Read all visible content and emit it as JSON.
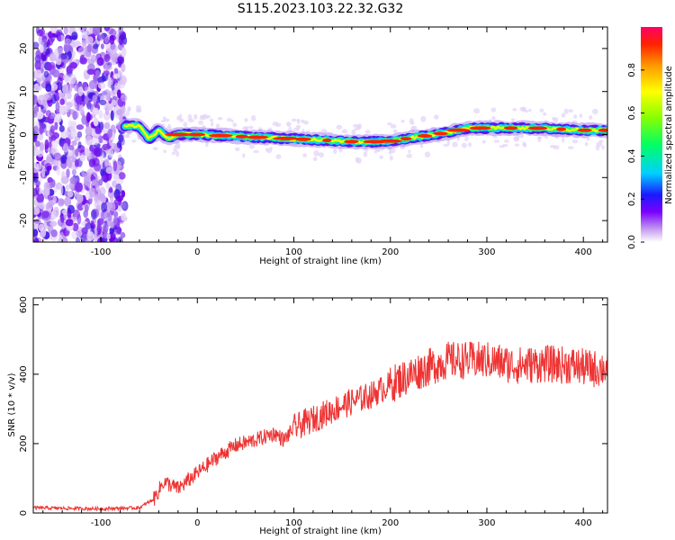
{
  "title": "S115.2023.103.22.32.G32",
  "chart_data": [
    {
      "type": "heatmap",
      "xlabel": "Height of straight line (km)",
      "ylabel": "Frequency (Hz)",
      "xlim": [
        -170,
        425
      ],
      "ylim": [
        -25,
        25
      ],
      "xticks": [
        -100,
        0,
        100,
        200,
        300,
        400
      ],
      "yticks": [
        -20,
        -10,
        0,
        10,
        20
      ],
      "colorbar": {
        "label": "Normalized spectral amplitude",
        "range": [
          0,
          1
        ],
        "ticks": [
          0.0,
          0.2,
          0.4,
          0.6,
          0.8
        ]
      },
      "ridge": {
        "x": [
          -60,
          -50,
          -40,
          -30,
          -20,
          0,
          50,
          100,
          150,
          170,
          200,
          230,
          260,
          280,
          300,
          350,
          400,
          425
        ],
        "y": [
          2,
          -1,
          1,
          -1,
          0,
          0,
          -0.5,
          -1,
          -1.5,
          -1.8,
          -1.5,
          -0.5,
          0.5,
          1.5,
          1.5,
          1.5,
          1,
          1
        ]
      }
    },
    {
      "type": "line",
      "xlabel": "Height of straight line (km)",
      "ylabel": "SNR (10 * v/v)",
      "xlim": [
        -170,
        425
      ],
      "ylim": [
        0,
        620
      ],
      "xticks": [
        -100,
        0,
        100,
        200,
        300,
        400
      ],
      "yticks": [
        0,
        200,
        400,
        600
      ],
      "color": "#ee3333",
      "trend": {
        "x": [
          -170,
          -100,
          -60,
          -45,
          -35,
          -20,
          0,
          20,
          40,
          60,
          80,
          90,
          100,
          120,
          150,
          180,
          200,
          230,
          260,
          280,
          300,
          330,
          360,
          390,
          410,
          425
        ],
        "y": [
          15,
          12,
          15,
          40,
          90,
          70,
          115,
          160,
          195,
          210,
          230,
          210,
          245,
          270,
          310,
          340,
          370,
          410,
          440,
          440,
          440,
          425,
          430,
          425,
          415,
          420
        ]
      }
    }
  ]
}
